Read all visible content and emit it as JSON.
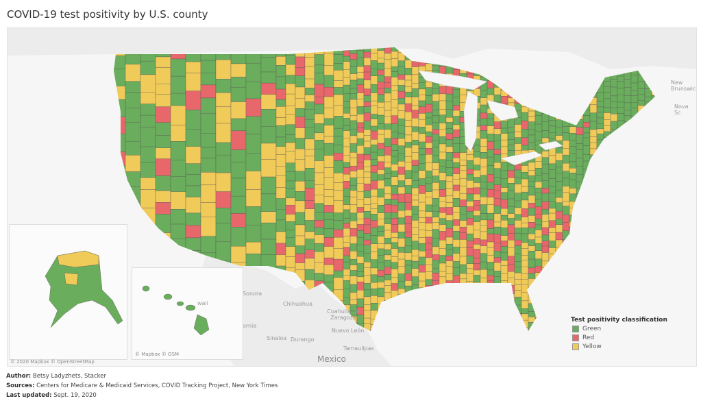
{
  "title": "COVID-19 test positivity by U.S. county",
  "map": {
    "place_labels": [
      "New Brunswick",
      "Nova Sc",
      "Sonora",
      "Chihuahua",
      "Coahuila de Zaragoza",
      "ornia",
      "Sinaloa",
      "Durango",
      "Nuevo León",
      "Tamaulipas",
      "Mexico",
      "waii"
    ],
    "attribution_main": "© 2020 Mapbox © OpenStreetMap",
    "attribution_inset": "© Mapbox © OSM"
  },
  "legend": {
    "title": "Test positivity classification",
    "items": [
      {
        "label": "Green",
        "color": "#6aad5c"
      },
      {
        "label": "Red",
        "color": "#e8676a"
      },
      {
        "label": "Yellow",
        "color": "#f0cb5a"
      }
    ]
  },
  "footer": {
    "author_label": "Author:",
    "author": "Betsy Ladyzhets, Stacker",
    "sources_label": "Sources:",
    "sources": "Centers for Medicare & Medicaid Services, COVID Tracking Project, New York Times",
    "updated_label": "Last updated:",
    "updated": "Sept. 19, 2020"
  }
}
